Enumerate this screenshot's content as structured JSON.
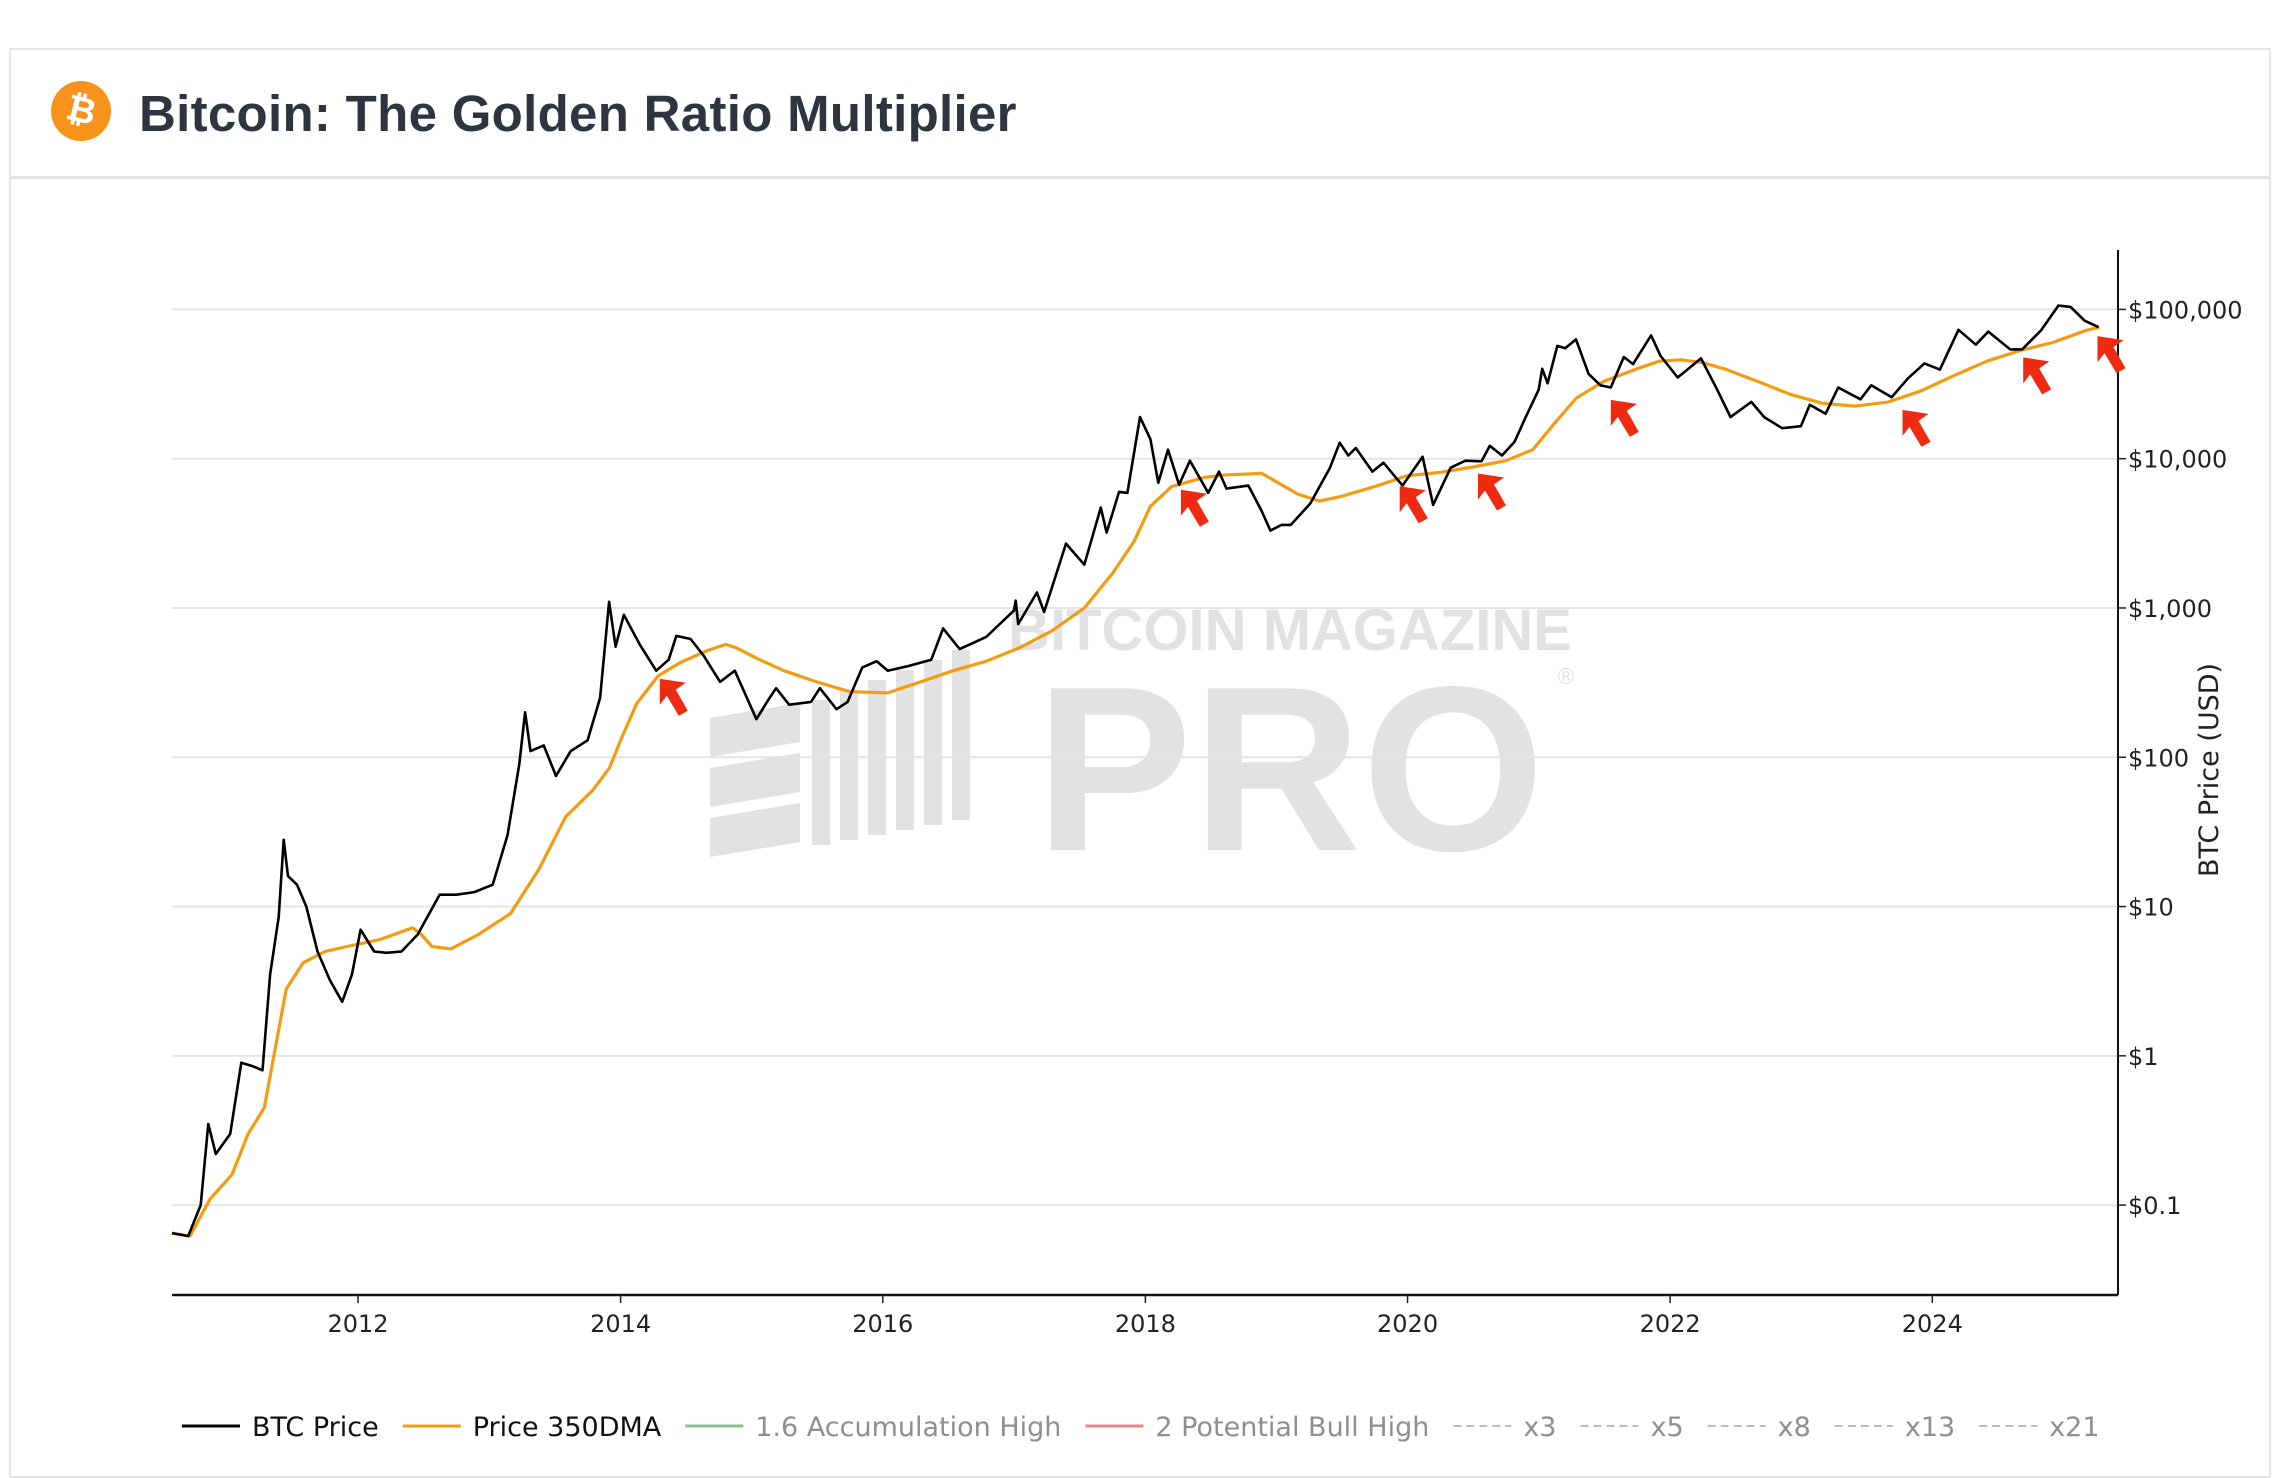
{
  "header": {
    "title": "Bitcoin: The Golden Ratio Multiplier",
    "logo_glyph": "₿",
    "logo_color": "#f7931a"
  },
  "watermark": {
    "line1": "BITCOIN MAGAZINE",
    "line2": "PRO",
    "mark": "®"
  },
  "chart_data": {
    "type": "line",
    "title": "Bitcoin: The Golden Ratio Multiplier",
    "ylabel": "BTC Price (USD)",
    "xlabel": "",
    "y_scale": "log",
    "ylim": [
      0.025,
      250000
    ],
    "xlim": [
      "2010-08-01",
      "2025-06-01"
    ],
    "grid": true,
    "y_axis_side": "right",
    "legend_position": "bottom",
    "x_ticks": [
      {
        "date": "2012-01-01",
        "label": "2012"
      },
      {
        "date": "2014-01-01",
        "label": "2014"
      },
      {
        "date": "2016-01-01",
        "label": "2016"
      },
      {
        "date": "2018-01-01",
        "label": "2018"
      },
      {
        "date": "2020-01-01",
        "label": "2020"
      },
      {
        "date": "2022-01-01",
        "label": "2022"
      },
      {
        "date": "2024-01-01",
        "label": "2024"
      }
    ],
    "y_ticks": [
      {
        "value": 100000,
        "label": "$100,000"
      },
      {
        "value": 10000,
        "label": "$10,000"
      },
      {
        "value": 1000,
        "label": "$1,000"
      },
      {
        "value": 100,
        "label": "$100"
      },
      {
        "value": 10,
        "label": "$10"
      },
      {
        "value": 1,
        "label": "$1"
      },
      {
        "value": 0.1,
        "label": "$0.1"
      }
    ],
    "legend": [
      {
        "name": "BTC Price",
        "color": "#000000",
        "style": "solid",
        "active": true
      },
      {
        "name": "Price 350DMA",
        "color": "#f39c12",
        "style": "solid",
        "active": true
      },
      {
        "name": "1.6 Accumulation High",
        "color": "#8bc48a",
        "style": "solid",
        "active": false
      },
      {
        "name": "2 Potential Bull High",
        "color": "#e8868b",
        "style": "solid",
        "active": false
      },
      {
        "name": "x3",
        "color": "#bbbbbb",
        "style": "dashed",
        "active": false
      },
      {
        "name": "x5",
        "color": "#bbbbbb",
        "style": "dashed",
        "active": false
      },
      {
        "name": "x8",
        "color": "#bbbbbb",
        "style": "dashed",
        "active": false
      },
      {
        "name": "x13",
        "color": "#bbbbbb",
        "style": "dashed",
        "active": false
      },
      {
        "name": "x21",
        "color": "#bbbbbb",
        "style": "dashed",
        "active": false
      }
    ],
    "series": [
      {
        "name": "BTC Price",
        "color": "#000000",
        "points": [
          [
            "2010-08-01",
            0.065
          ],
          [
            "2010-09-15",
            0.062
          ],
          [
            "2010-10-20",
            0.1
          ],
          [
            "2010-11-10",
            0.35
          ],
          [
            "2010-12-01",
            0.22
          ],
          [
            "2011-01-10",
            0.3
          ],
          [
            "2011-02-10",
            0.9
          ],
          [
            "2011-03-15",
            0.85
          ],
          [
            "2011-04-10",
            0.8
          ],
          [
            "2011-05-01",
            3.5
          ],
          [
            "2011-05-25",
            8.5
          ],
          [
            "2011-06-08",
            28
          ],
          [
            "2011-06-20",
            16
          ],
          [
            "2011-07-15",
            14
          ],
          [
            "2011-08-10",
            10
          ],
          [
            "2011-09-10",
            5
          ],
          [
            "2011-10-15",
            3.2
          ],
          [
            "2011-11-18",
            2.3
          ],
          [
            "2011-12-15",
            3.5
          ],
          [
            "2012-01-08",
            7
          ],
          [
            "2012-02-15",
            5
          ],
          [
            "2012-03-20",
            4.9
          ],
          [
            "2012-05-01",
            5
          ],
          [
            "2012-06-15",
            6.5
          ],
          [
            "2012-08-15",
            12
          ],
          [
            "2012-10-01",
            12
          ],
          [
            "2012-11-20",
            12.5
          ],
          [
            "2013-01-10",
            14
          ],
          [
            "2013-02-20",
            30
          ],
          [
            "2013-03-25",
            90
          ],
          [
            "2013-04-10",
            200
          ],
          [
            "2013-04-25",
            110
          ],
          [
            "2013-06-01",
            120
          ],
          [
            "2013-07-05",
            75
          ],
          [
            "2013-08-15",
            110
          ],
          [
            "2013-10-01",
            130
          ],
          [
            "2013-11-05",
            250
          ],
          [
            "2013-11-30",
            1100
          ],
          [
            "2013-12-18",
            550
          ],
          [
            "2014-01-10",
            900
          ],
          [
            "2014-02-25",
            560
          ],
          [
            "2014-04-10",
            380
          ],
          [
            "2014-05-15",
            450
          ],
          [
            "2014-06-05",
            650
          ],
          [
            "2014-07-15",
            620
          ],
          [
            "2014-08-20",
            480
          ],
          [
            "2014-10-05",
            320
          ],
          [
            "2014-11-15",
            380
          ],
          [
            "2015-01-14",
            180
          ],
          [
            "2015-02-15",
            240
          ],
          [
            "2015-03-10",
            290
          ],
          [
            "2015-04-15",
            225
          ],
          [
            "2015-06-15",
            235
          ],
          [
            "2015-07-10",
            290
          ],
          [
            "2015-08-25",
            210
          ],
          [
            "2015-09-25",
            235
          ],
          [
            "2015-11-05",
            400
          ],
          [
            "2015-12-15",
            440
          ],
          [
            "2016-01-15",
            380
          ],
          [
            "2016-03-15",
            410
          ],
          [
            "2016-05-15",
            450
          ],
          [
            "2016-06-17",
            730
          ],
          [
            "2016-08-02",
            530
          ],
          [
            "2016-10-15",
            640
          ],
          [
            "2016-12-31",
            960
          ],
          [
            "2017-01-05",
            1120
          ],
          [
            "2017-01-12",
            780
          ],
          [
            "2017-03-05",
            1270
          ],
          [
            "2017-03-25",
            940
          ],
          [
            "2017-05-25",
            2700
          ],
          [
            "2017-07-15",
            1950
          ],
          [
            "2017-08-30",
            4700
          ],
          [
            "2017-09-15",
            3200
          ],
          [
            "2017-10-20",
            6000
          ],
          [
            "2017-11-12",
            5900
          ],
          [
            "2017-12-17",
            19000
          ],
          [
            "2018-01-15",
            13500
          ],
          [
            "2018-02-06",
            6900
          ],
          [
            "2018-03-05",
            11500
          ],
          [
            "2018-04-05",
            6700
          ],
          [
            "2018-05-05",
            9700
          ],
          [
            "2018-06-25",
            5900
          ],
          [
            "2018-07-25",
            8200
          ],
          [
            "2018-08-15",
            6300
          ],
          [
            "2018-10-15",
            6600
          ],
          [
            "2018-11-20",
            4500
          ],
          [
            "2018-12-15",
            3300
          ],
          [
            "2019-01-15",
            3600
          ],
          [
            "2019-02-10",
            3600
          ],
          [
            "2019-04-05",
            5000
          ],
          [
            "2019-05-30",
            8700
          ],
          [
            "2019-06-26",
            12800
          ],
          [
            "2019-07-20",
            10500
          ],
          [
            "2019-08-10",
            11800
          ],
          [
            "2019-09-25",
            8200
          ],
          [
            "2019-10-26",
            9400
          ],
          [
            "2019-12-18",
            6600
          ],
          [
            "2020-02-12",
            10300
          ],
          [
            "2020-03-12",
            4900
          ],
          [
            "2020-04-30",
            8700
          ],
          [
            "2020-06-10",
            9700
          ],
          [
            "2020-07-25",
            9600
          ],
          [
            "2020-08-17",
            12200
          ],
          [
            "2020-09-20",
            10500
          ],
          [
            "2020-10-25",
            13000
          ],
          [
            "2020-11-25",
            19000
          ],
          [
            "2020-12-31",
            29000
          ],
          [
            "2021-01-10",
            40000
          ],
          [
            "2021-01-25",
            32000
          ],
          [
            "2021-02-21",
            57000
          ],
          [
            "2021-03-15",
            55000
          ],
          [
            "2021-04-14",
            63000
          ],
          [
            "2021-05-19",
            37000
          ],
          [
            "2021-06-21",
            31000
          ],
          [
            "2021-07-20",
            30000
          ],
          [
            "2021-08-25",
            48000
          ],
          [
            "2021-09-20",
            43000
          ],
          [
            "2021-11-09",
            67000
          ],
          [
            "2021-12-05",
            49000
          ],
          [
            "2022-01-22",
            35000
          ],
          [
            "2022-03-28",
            47000
          ],
          [
            "2022-05-12",
            29000
          ],
          [
            "2022-06-18",
            19000
          ],
          [
            "2022-08-15",
            24000
          ],
          [
            "2022-09-20",
            19000
          ],
          [
            "2022-11-09",
            16000
          ],
          [
            "2022-12-31",
            16500
          ],
          [
            "2023-01-25",
            23000
          ],
          [
            "2023-03-10",
            20000
          ],
          [
            "2023-04-14",
            30000
          ],
          [
            "2023-06-15",
            25000
          ],
          [
            "2023-07-15",
            31000
          ],
          [
            "2023-09-10",
            25800
          ],
          [
            "2023-10-25",
            34500
          ],
          [
            "2023-12-10",
            43500
          ],
          [
            "2024-01-22",
            39500
          ],
          [
            "2024-03-14",
            73000
          ],
          [
            "2024-05-01",
            58000
          ],
          [
            "2024-06-05",
            71000
          ],
          [
            "2024-08-05",
            54000
          ],
          [
            "2024-09-07",
            54000
          ],
          [
            "2024-10-29",
            72000
          ],
          [
            "2024-12-17",
            106000
          ],
          [
            "2025-01-20",
            104000
          ],
          [
            "2025-02-28",
            84000
          ],
          [
            "2025-04-08",
            76000
          ]
        ]
      },
      {
        "name": "Price 350DMA",
        "color": "#f39c12",
        "points": [
          [
            "2010-08-01",
            0.065
          ],
          [
            "2010-09-20",
            0.062
          ],
          [
            "2010-11-15",
            0.11
          ],
          [
            "2011-01-15",
            0.16
          ],
          [
            "2011-03-01",
            0.3
          ],
          [
            "2011-04-15",
            0.45
          ],
          [
            "2011-06-15",
            2.8
          ],
          [
            "2011-08-01",
            4.2
          ],
          [
            "2011-10-01",
            5
          ],
          [
            "2011-12-01",
            5.4
          ],
          [
            "2012-03-01",
            6
          ],
          [
            "2012-06-01",
            7.2
          ],
          [
            "2012-06-25",
            6.5
          ],
          [
            "2012-07-25",
            5.4
          ],
          [
            "2012-09-15",
            5.2
          ],
          [
            "2012-12-01",
            6.5
          ],
          [
            "2013-03-01",
            9
          ],
          [
            "2013-05-20",
            18
          ],
          [
            "2013-08-01",
            40
          ],
          [
            "2013-10-15",
            60
          ],
          [
            "2013-12-01",
            85
          ],
          [
            "2014-01-01",
            130
          ],
          [
            "2014-02-15",
            230
          ],
          [
            "2014-04-15",
            350
          ],
          [
            "2014-06-15",
            430
          ],
          [
            "2014-09-01",
            520
          ],
          [
            "2014-10-20",
            570
          ],
          [
            "2014-11-20",
            540
          ],
          [
            "2015-01-15",
            460
          ],
          [
            "2015-04-01",
            380
          ],
          [
            "2015-07-01",
            320
          ],
          [
            "2015-10-01",
            275
          ],
          [
            "2016-01-15",
            270
          ],
          [
            "2016-04-15",
            320
          ],
          [
            "2016-07-15",
            380
          ],
          [
            "2016-10-15",
            440
          ],
          [
            "2017-01-15",
            540
          ],
          [
            "2017-04-15",
            700
          ],
          [
            "2017-07-15",
            1000
          ],
          [
            "2017-10-01",
            1700
          ],
          [
            "2017-12-01",
            2800
          ],
          [
            "2018-01-15",
            4800
          ],
          [
            "2018-03-15",
            6500
          ],
          [
            "2018-06-15",
            7500
          ],
          [
            "2018-08-15",
            7800
          ],
          [
            "2018-10-15",
            7900
          ],
          [
            "2018-11-20",
            8000
          ],
          [
            "2019-01-01",
            7000
          ],
          [
            "2019-03-01",
            5800
          ],
          [
            "2019-05-01",
            5200
          ],
          [
            "2019-07-01",
            5600
          ],
          [
            "2019-10-01",
            6500
          ],
          [
            "2020-01-01",
            7700
          ],
          [
            "2020-04-01",
            8100
          ],
          [
            "2020-07-01",
            8800
          ],
          [
            "2020-10-01",
            9700
          ],
          [
            "2020-12-15",
            11500
          ],
          [
            "2021-02-15",
            17500
          ],
          [
            "2021-04-15",
            25500
          ],
          [
            "2021-07-01",
            33000
          ],
          [
            "2021-10-01",
            40000
          ],
          [
            "2021-12-01",
            45000
          ],
          [
            "2022-02-01",
            46000
          ],
          [
            "2022-04-01",
            44000
          ],
          [
            "2022-06-01",
            40000
          ],
          [
            "2022-09-01",
            33000
          ],
          [
            "2022-12-01",
            27000
          ],
          [
            "2023-03-01",
            23500
          ],
          [
            "2023-06-01",
            22500
          ],
          [
            "2023-09-01",
            24000
          ],
          [
            "2023-12-01",
            28500
          ],
          [
            "2024-03-01",
            36000
          ],
          [
            "2024-06-01",
            45000
          ],
          [
            "2024-09-01",
            53000
          ],
          [
            "2024-12-01",
            60000
          ],
          [
            "2025-03-01",
            72000
          ],
          [
            "2025-04-10",
            76000
          ]
        ]
      }
    ],
    "annotations": {
      "type": "arrow",
      "color": "#ee2a10",
      "targets": [
        {
          "date": "2014-04-20",
          "value": 380
        },
        {
          "date": "2018-04-10",
          "value": 7000
        },
        {
          "date": "2019-12-10",
          "value": 7400
        },
        {
          "date": "2020-07-15",
          "value": 9000
        },
        {
          "date": "2021-07-20",
          "value": 28000
        },
        {
          "date": "2023-10-10",
          "value": 24000
        },
        {
          "date": "2024-09-10",
          "value": 54000
        },
        {
          "date": "2025-04-05",
          "value": 75000
        }
      ]
    }
  }
}
